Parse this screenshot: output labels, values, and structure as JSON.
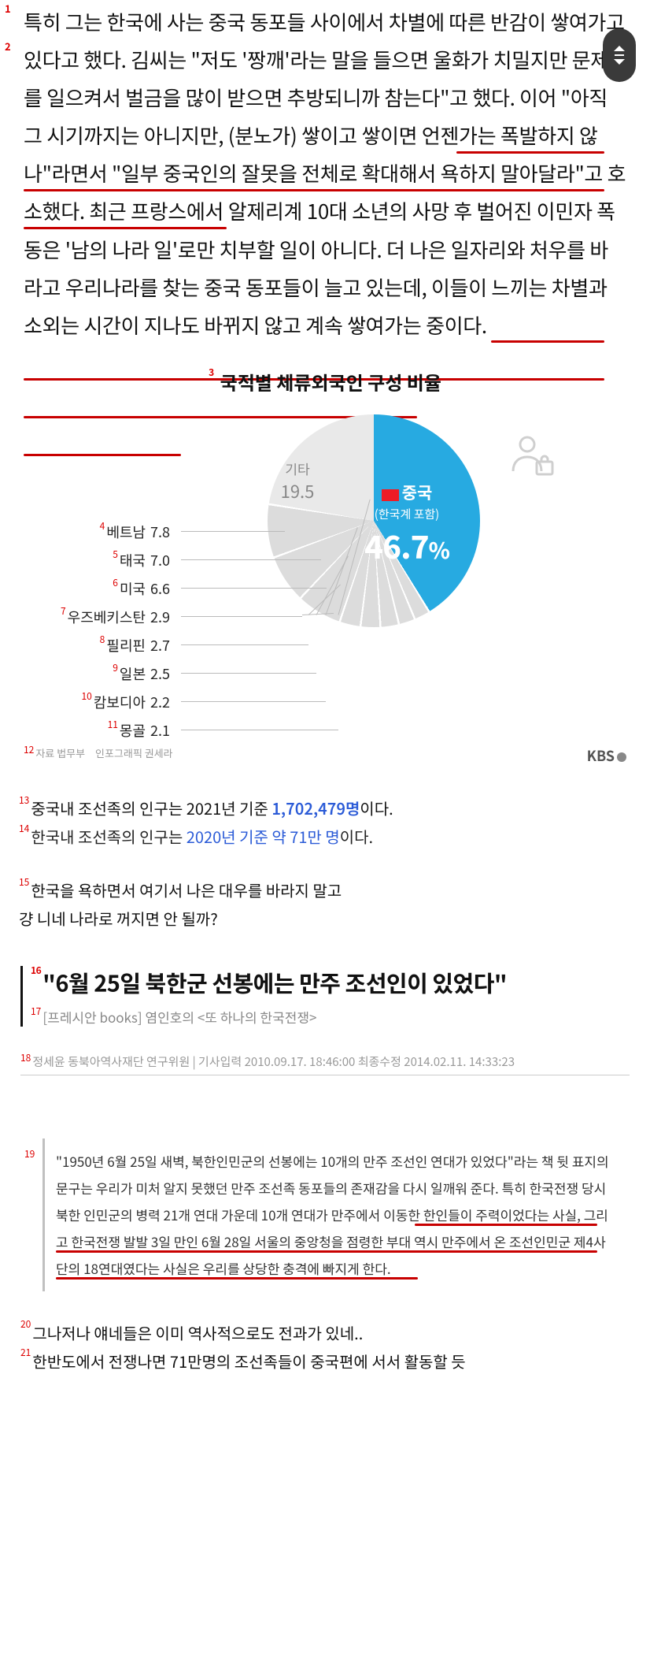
{
  "article": {
    "paragraph": "특히 그는 한국에 사는 중국 동포들 사이에서 차별에 따른 반감이 쌓여가고 있다고 했다. 김씨는 \"저도 '짱깨'라는 말을 들으면 울화가 치밀지만 문제를 일으켜서 벌금을 많이 받으면 추방되니까 참는다\"고 했다. 이어 \"아직 그 시기까지는 아니지만, (분노가) 쌓이고 쌓이면 언젠가는 폭발하지 않나\"라면서 \"일부 중국인의 잘못을 전체로 확대해서 욕하지 말아달라\"고 호소했다. 최근 프랑스에서 알제리계 10대 소년의 사망 후 벌어진 이민자 폭동은 '남의 나라 일'로만 치부할 일이 아니다. 더 나은 일자리와 처우를 바라고 우리나라를 찾는 중국 동포들이 늘고 있는데, 이들이 느끼는 차별과 소외는 시간이 지나도 바뀌지 않고 계속 쌓여가는 중이다.",
    "markers": {
      "p1": "1",
      "p2": "2"
    }
  },
  "chart": {
    "title": "국적별 체류외국인 구성 비율",
    "title_marker": "3",
    "type": "pie",
    "background_color": "#ffffff",
    "main_slice": {
      "label": "중국",
      "sub": "(한국계 포함)",
      "pct": "46.7",
      "pct_suffix": "%",
      "color": "#27aae1"
    },
    "etc": {
      "label": "기타",
      "pct": "19.5",
      "color": "#e9e9e9"
    },
    "slices": [
      {
        "label": "베트남",
        "value": 7.8,
        "color": "#d9d9d9",
        "marker": "4"
      },
      {
        "label": "태국",
        "value": 7.0,
        "color": "#d9d9d9",
        "marker": "5"
      },
      {
        "label": "미국",
        "value": 6.6,
        "color": "#d9d9d9",
        "marker": "6"
      },
      {
        "label": "우즈베키스탄",
        "value": 2.9,
        "color": "#d9d9d9",
        "marker": "7"
      },
      {
        "label": "필리핀",
        "value": 2.7,
        "color": "#d9d9d9",
        "marker": "8"
      },
      {
        "label": "일본",
        "value": 2.5,
        "color": "#d9d9d9",
        "marker": "9"
      },
      {
        "label": "캄보디아",
        "value": 2.2,
        "color": "#d9d9d9",
        "marker": "10"
      },
      {
        "label": "몽골",
        "value": 2.1,
        "color": "#d9d9d9",
        "marker": "11"
      }
    ],
    "footer_source": "자료 법무부　인포그래픽 권세라",
    "footer_source_marker": "12",
    "footer_logo": "KBS"
  },
  "comments": {
    "c1_pre": "중국내 조선족의 인구는 2021년 기준 ",
    "c1_num": "1,702,479명",
    "c1_post": "이다.",
    "c1_marker": "13",
    "c2_pre": "한국내 조선족의 인구는 ",
    "c2_year": "2020년 기준 약 71만 명",
    "c2_post": "이다.",
    "c2_marker": "14",
    "c3_line1": "한국을 욕하면서 여기서 나은 대우를 바라지 말고",
    "c3_line2": "걍 니네 나라로 꺼지면 안 될까?",
    "c3_marker": "15"
  },
  "article2": {
    "headline": "\"6월 25일 북한군 선봉에는 만주 조선인이 있었다\"",
    "headline_marker": "16",
    "sub": "[프레시안 books] 염인호의 <또 하나의 한국전쟁>",
    "sub_marker": "17",
    "byline": "정세윤 동북아역사재단 연구위원 | 기사입력 2010.09.17. 18:46:00 최종수정 2014.02.11. 14:33:23",
    "byline_marker": "18",
    "quote": "\"1950년 6월 25일 새벽, 북한인민군의 선봉에는 10개의 만주 조선인 연대가 있었다\"라는 책 뒷 표지의 문구는 우리가 미처 알지 못했던 만주 조선족 동포들의 존재감을 다시 일깨워 준다. 특히 한국전쟁 당시 북한 인민군의 병력 21개 연대 가운데 10개 연대가 만주에서 이동한 한인들이 주력이었다는 사실, 그리고 한국전쟁 발발 3일 만인 6월 28일 서울의 중앙청을 점령한 부대 역시 만주에서 온 조선인민군 제4사단의 18연대였다는 사실은 우리를 상당한 충격에 빠지게 한다.",
    "quote_marker": "19"
  },
  "tail": {
    "t1": "그나저나 얘네들은 이미 역사적으로도 전과가 있네..",
    "t1_marker": "20",
    "t2": "한반도에서 전쟁나면 71만명의 조선족들이 중국편에 서서 활동할 듯",
    "t2_marker": "21"
  },
  "colors": {
    "underline": "#c80000",
    "link": "#2b5bd7"
  }
}
